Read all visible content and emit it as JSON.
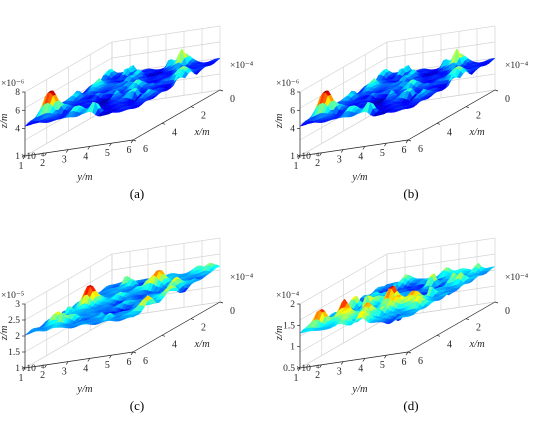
{
  "chart_data": [
    {
      "type": "surface",
      "panel_label": "(a)",
      "xlabel": "x/m",
      "ylabel": "y/m",
      "zlabel": "z/m",
      "x_multiplier": "×10⁻⁴",
      "y_multiplier": "×10⁻⁴",
      "z_multiplier": "×10⁻⁶",
      "x_ticks": [
        "0",
        "2",
        "4",
        "6"
      ],
      "y_ticks": [
        "1",
        "2",
        "3",
        "4",
        "5",
        "6"
      ],
      "z_ticks": [
        "1",
        "4",
        "6",
        "8"
      ],
      "x_range": [
        0,
        6
      ],
      "y_range": [
        1,
        6
      ],
      "z_range": [
        1,
        8
      ],
      "colormap": "jet",
      "seed": 11
    },
    {
      "type": "surface",
      "panel_label": "(b)",
      "xlabel": "x/m",
      "ylabel": "y/m",
      "zlabel": "z/m",
      "x_multiplier": "×10⁻⁴",
      "y_multiplier": "×10⁻⁴",
      "z_multiplier": "×10⁻⁶",
      "x_ticks": [
        "0",
        "2",
        "4",
        "6"
      ],
      "y_ticks": [
        "1",
        "2",
        "3",
        "4",
        "5",
        "6"
      ],
      "z_ticks": [
        "1",
        "4",
        "6",
        "8"
      ],
      "x_range": [
        0,
        6
      ],
      "y_range": [
        1,
        6
      ],
      "z_range": [
        1,
        8
      ],
      "colormap": "jet",
      "seed": 11
    },
    {
      "type": "surface",
      "panel_label": "(c)",
      "xlabel": "x/m",
      "ylabel": "y/m",
      "zlabel": "z/m",
      "x_multiplier": "×10⁻⁴",
      "y_multiplier": "×10⁻⁴",
      "z_multiplier": "×10⁻⁵",
      "x_ticks": [
        "0",
        "2",
        "4",
        "6"
      ],
      "y_ticks": [
        "1",
        "2",
        "3",
        "4",
        "5",
        "6"
      ],
      "z_ticks": [
        "1",
        "1.5",
        "2",
        "2.5",
        "3"
      ],
      "x_range": [
        0,
        6
      ],
      "y_range": [
        1,
        6
      ],
      "z_range": [
        1,
        3
      ],
      "colormap": "jet",
      "seed": 37
    },
    {
      "type": "surface",
      "panel_label": "(d)",
      "xlabel": "x/m",
      "ylabel": "y/m",
      "zlabel": "z/m",
      "x_multiplier": "×10⁻⁴",
      "y_multiplier": "×10⁻⁴",
      "z_multiplier": "×10⁻⁴",
      "x_ticks": [
        "0",
        "2",
        "4",
        "6"
      ],
      "y_ticks": [
        "1",
        "2",
        "3",
        "4",
        "5",
        "6"
      ],
      "z_ticks": [
        "0.5",
        "1",
        "1.5",
        "2"
      ],
      "x_range": [
        0,
        6
      ],
      "y_range": [
        1,
        6
      ],
      "z_range": [
        0.5,
        2
      ],
      "colormap": "jet",
      "seed": 73
    }
  ]
}
